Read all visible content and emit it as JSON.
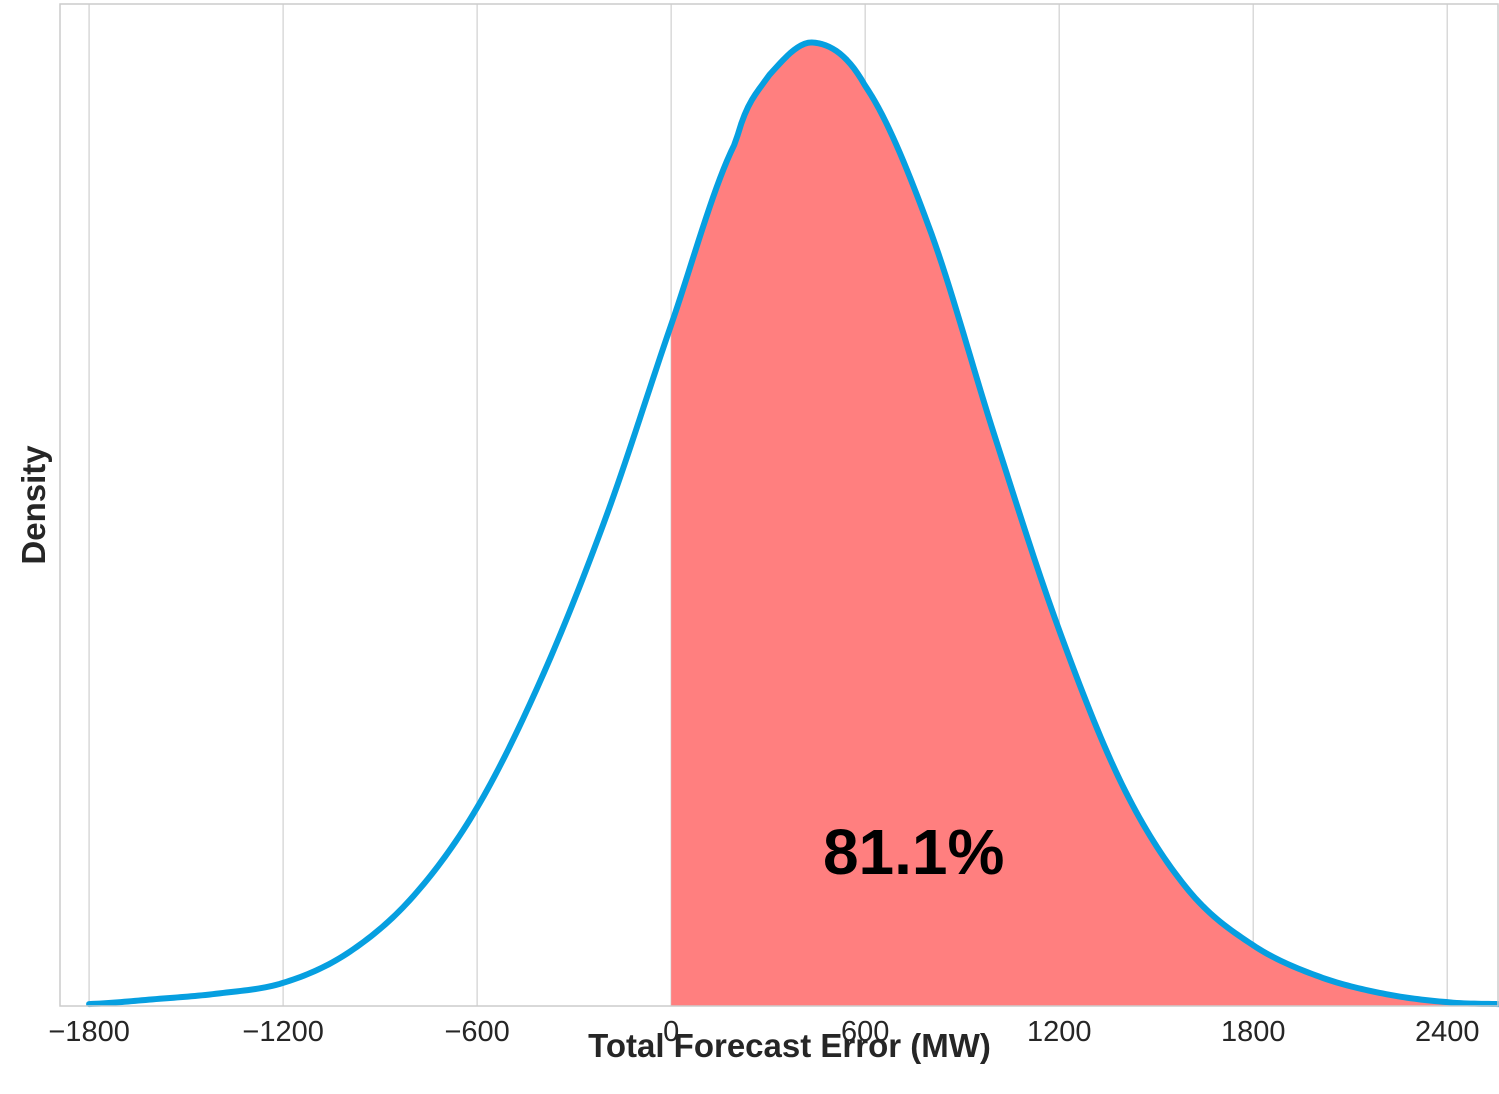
{
  "chart_data": {
    "type": "area",
    "xlabel": "Total Forecast Error (MW)",
    "ylabel": "Density",
    "xlim": [
      -1890,
      2560
    ],
    "ylim": [
      0,
      1.04
    ],
    "x_ticks": [
      -1800,
      -1200,
      -600,
      0,
      600,
      1200,
      1800,
      2400
    ],
    "x_tick_labels": [
      "−1800",
      "−1200",
      "−600",
      "0",
      "600",
      "1200",
      "1800",
      "2400"
    ],
    "grid": {
      "vertical": true,
      "horizontal": false
    },
    "series": [
      {
        "type": "line",
        "color": "#069fe0",
        "x": [
          -1800,
          -1600,
          -1400,
          -1200,
          -1000,
          -800,
          -600,
          -400,
          -200,
          0,
          200,
          300,
          440,
          600,
          800,
          1000,
          1200,
          1400,
          1600,
          1800,
          2000,
          2200,
          2400,
          2560
        ],
        "y": [
          0.002,
          0.007,
          0.013,
          0.024,
          0.055,
          0.113,
          0.206,
          0.341,
          0.509,
          0.707,
          0.897,
          0.965,
          1.0,
          0.955,
          0.806,
          0.592,
          0.39,
          0.226,
          0.12,
          0.063,
          0.031,
          0.013,
          0.004,
          0.002
        ]
      }
    ],
    "shaded_region": {
      "from_x": 0,
      "color": "#ff7f7f",
      "percent_label": "81.1%"
    },
    "annotation": {
      "text": "81.1%",
      "x": 750,
      "y": 0.16
    }
  }
}
